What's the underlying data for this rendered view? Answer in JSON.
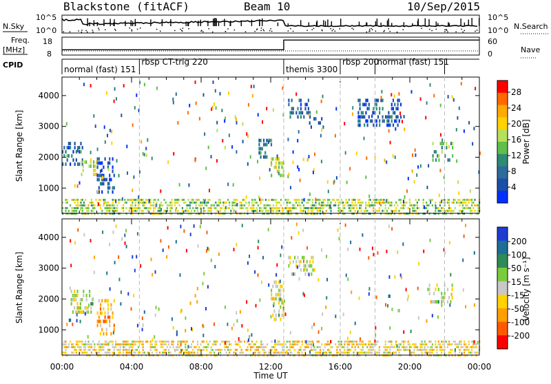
{
  "header": {
    "station": "Blackstone (fitACF)",
    "beam": "Beam 10",
    "date": "10/Sep/2015"
  },
  "labels": {
    "nsky": "N.Sky",
    "nsearch": "N.Search",
    "freq": "Freq.",
    "freq_unit": "[MHz]",
    "nave": "Nave",
    "cpid": "CPID"
  },
  "summary_axes": {
    "noise_left_ticks": [
      "10^5",
      "10^0"
    ],
    "noise_right_ticks": [
      "10^5",
      "10^0"
    ],
    "freq_ticks": [
      "18",
      "8"
    ],
    "nave_ticks": [
      "60",
      "0"
    ]
  },
  "cpid_segments": [
    {
      "label": "normal (fast) 151",
      "start": 0.0,
      "end": 4.45
    },
    {
      "label": "rbsp CT-trig 220",
      "start": 4.45,
      "end": 12.75
    },
    {
      "label": "themis 3300",
      "start": 12.75,
      "end": 16.0
    },
    {
      "label": "rbsp 200",
      "start": 16.0,
      "end": 18.0
    },
    {
      "label": "normal (fast) 151",
      "start": 18.0,
      "end": 22.0
    }
  ],
  "power_colorbar": {
    "label": "Power [dB]",
    "ticks": [
      "28",
      "24",
      "20",
      "16",
      "12",
      "8",
      "4"
    ],
    "colors": [
      "#ff0000",
      "#ff6a00",
      "#ffaa00",
      "#ffd200",
      "#b6e05a",
      "#5fbf4a",
      "#2e8b73",
      "#2e6b9a",
      "#1e4fa8",
      "#0030ff"
    ]
  },
  "velocity_colorbar": {
    "label": "Velocity [m s⁻¹]",
    "ticks": [
      "200",
      "100",
      "50",
      "15",
      "-15",
      "-50",
      "-100",
      "-200"
    ],
    "colors": [
      "#1e3cd2",
      "#1e6e96",
      "#2e8b57",
      "#7acc3c",
      "#c8c8c8",
      "#ffd200",
      "#ff9f00",
      "#ff5a00",
      "#ff0000"
    ]
  },
  "chart_data": {
    "type": "heatmap",
    "x_label": "Time UT",
    "x_ticks": [
      "00:00",
      "04:00",
      "08:00",
      "12:00",
      "16:00",
      "20:00",
      "00:00"
    ],
    "xlim": [
      0,
      24
    ],
    "y_label": "Slant Range [km]",
    "y_ticks": [
      "1000",
      "2000",
      "3000",
      "4000"
    ],
    "ylim": [
      180,
      4600
    ],
    "panels": [
      {
        "name": "power",
        "colorbar_label": "Power [dB]",
        "color_range": [
          0,
          30
        ],
        "regions": [
          {
            "t_start": 0.0,
            "t_end": 1.2,
            "r_start": 1700,
            "r_end": 2500,
            "value": 7
          },
          {
            "t_start": 1.0,
            "t_end": 2.0,
            "r_start": 1450,
            "r_end": 1900,
            "value": 17
          },
          {
            "t_start": 2.0,
            "t_end": 3.0,
            "r_start": 900,
            "r_end": 2000,
            "value": 5
          },
          {
            "t_start": 11.3,
            "t_end": 12.0,
            "r_start": 2000,
            "r_end": 2600,
            "value": 8
          },
          {
            "t_start": 12.0,
            "t_end": 12.7,
            "r_start": 1300,
            "r_end": 2000,
            "value": 17
          },
          {
            "t_start": 13.0,
            "t_end": 14.3,
            "r_start": 3300,
            "r_end": 3900,
            "value": 6
          },
          {
            "t_start": 14.2,
            "t_end": 15.0,
            "r_start": 2900,
            "r_end": 3300,
            "value": 6
          },
          {
            "t_start": 17.0,
            "t_end": 19.5,
            "r_start": 3000,
            "r_end": 3900,
            "value": 6
          },
          {
            "t_start": 21.2,
            "t_end": 22.5,
            "r_start": 1900,
            "r_end": 2500,
            "value": 12
          },
          {
            "t_start": 0.0,
            "t_end": 24.0,
            "r_start": 200,
            "r_end": 650,
            "value": 16
          }
        ]
      },
      {
        "name": "velocity",
        "colorbar_label": "Velocity [m s⁻¹]",
        "color_range": [
          -200,
          200
        ],
        "regions": [
          {
            "t_start": 0.5,
            "t_end": 1.8,
            "r_start": 1600,
            "r_end": 2300,
            "value": 0
          },
          {
            "t_start": 2.0,
            "t_end": 3.0,
            "r_start": 900,
            "r_end": 2000,
            "value": -70
          },
          {
            "t_start": 12.0,
            "t_end": 12.7,
            "r_start": 1300,
            "r_end": 2600,
            "value": 0
          },
          {
            "t_start": 13.0,
            "t_end": 14.5,
            "r_start": 2800,
            "r_end": 3400,
            "value": 0
          },
          {
            "t_start": 21.0,
            "t_end": 22.5,
            "r_start": 1900,
            "r_end": 2500,
            "value": 0
          },
          {
            "t_start": 0.0,
            "t_end": 24.0,
            "r_start": 200,
            "r_end": 650,
            "value": -30
          }
        ]
      }
    ]
  }
}
